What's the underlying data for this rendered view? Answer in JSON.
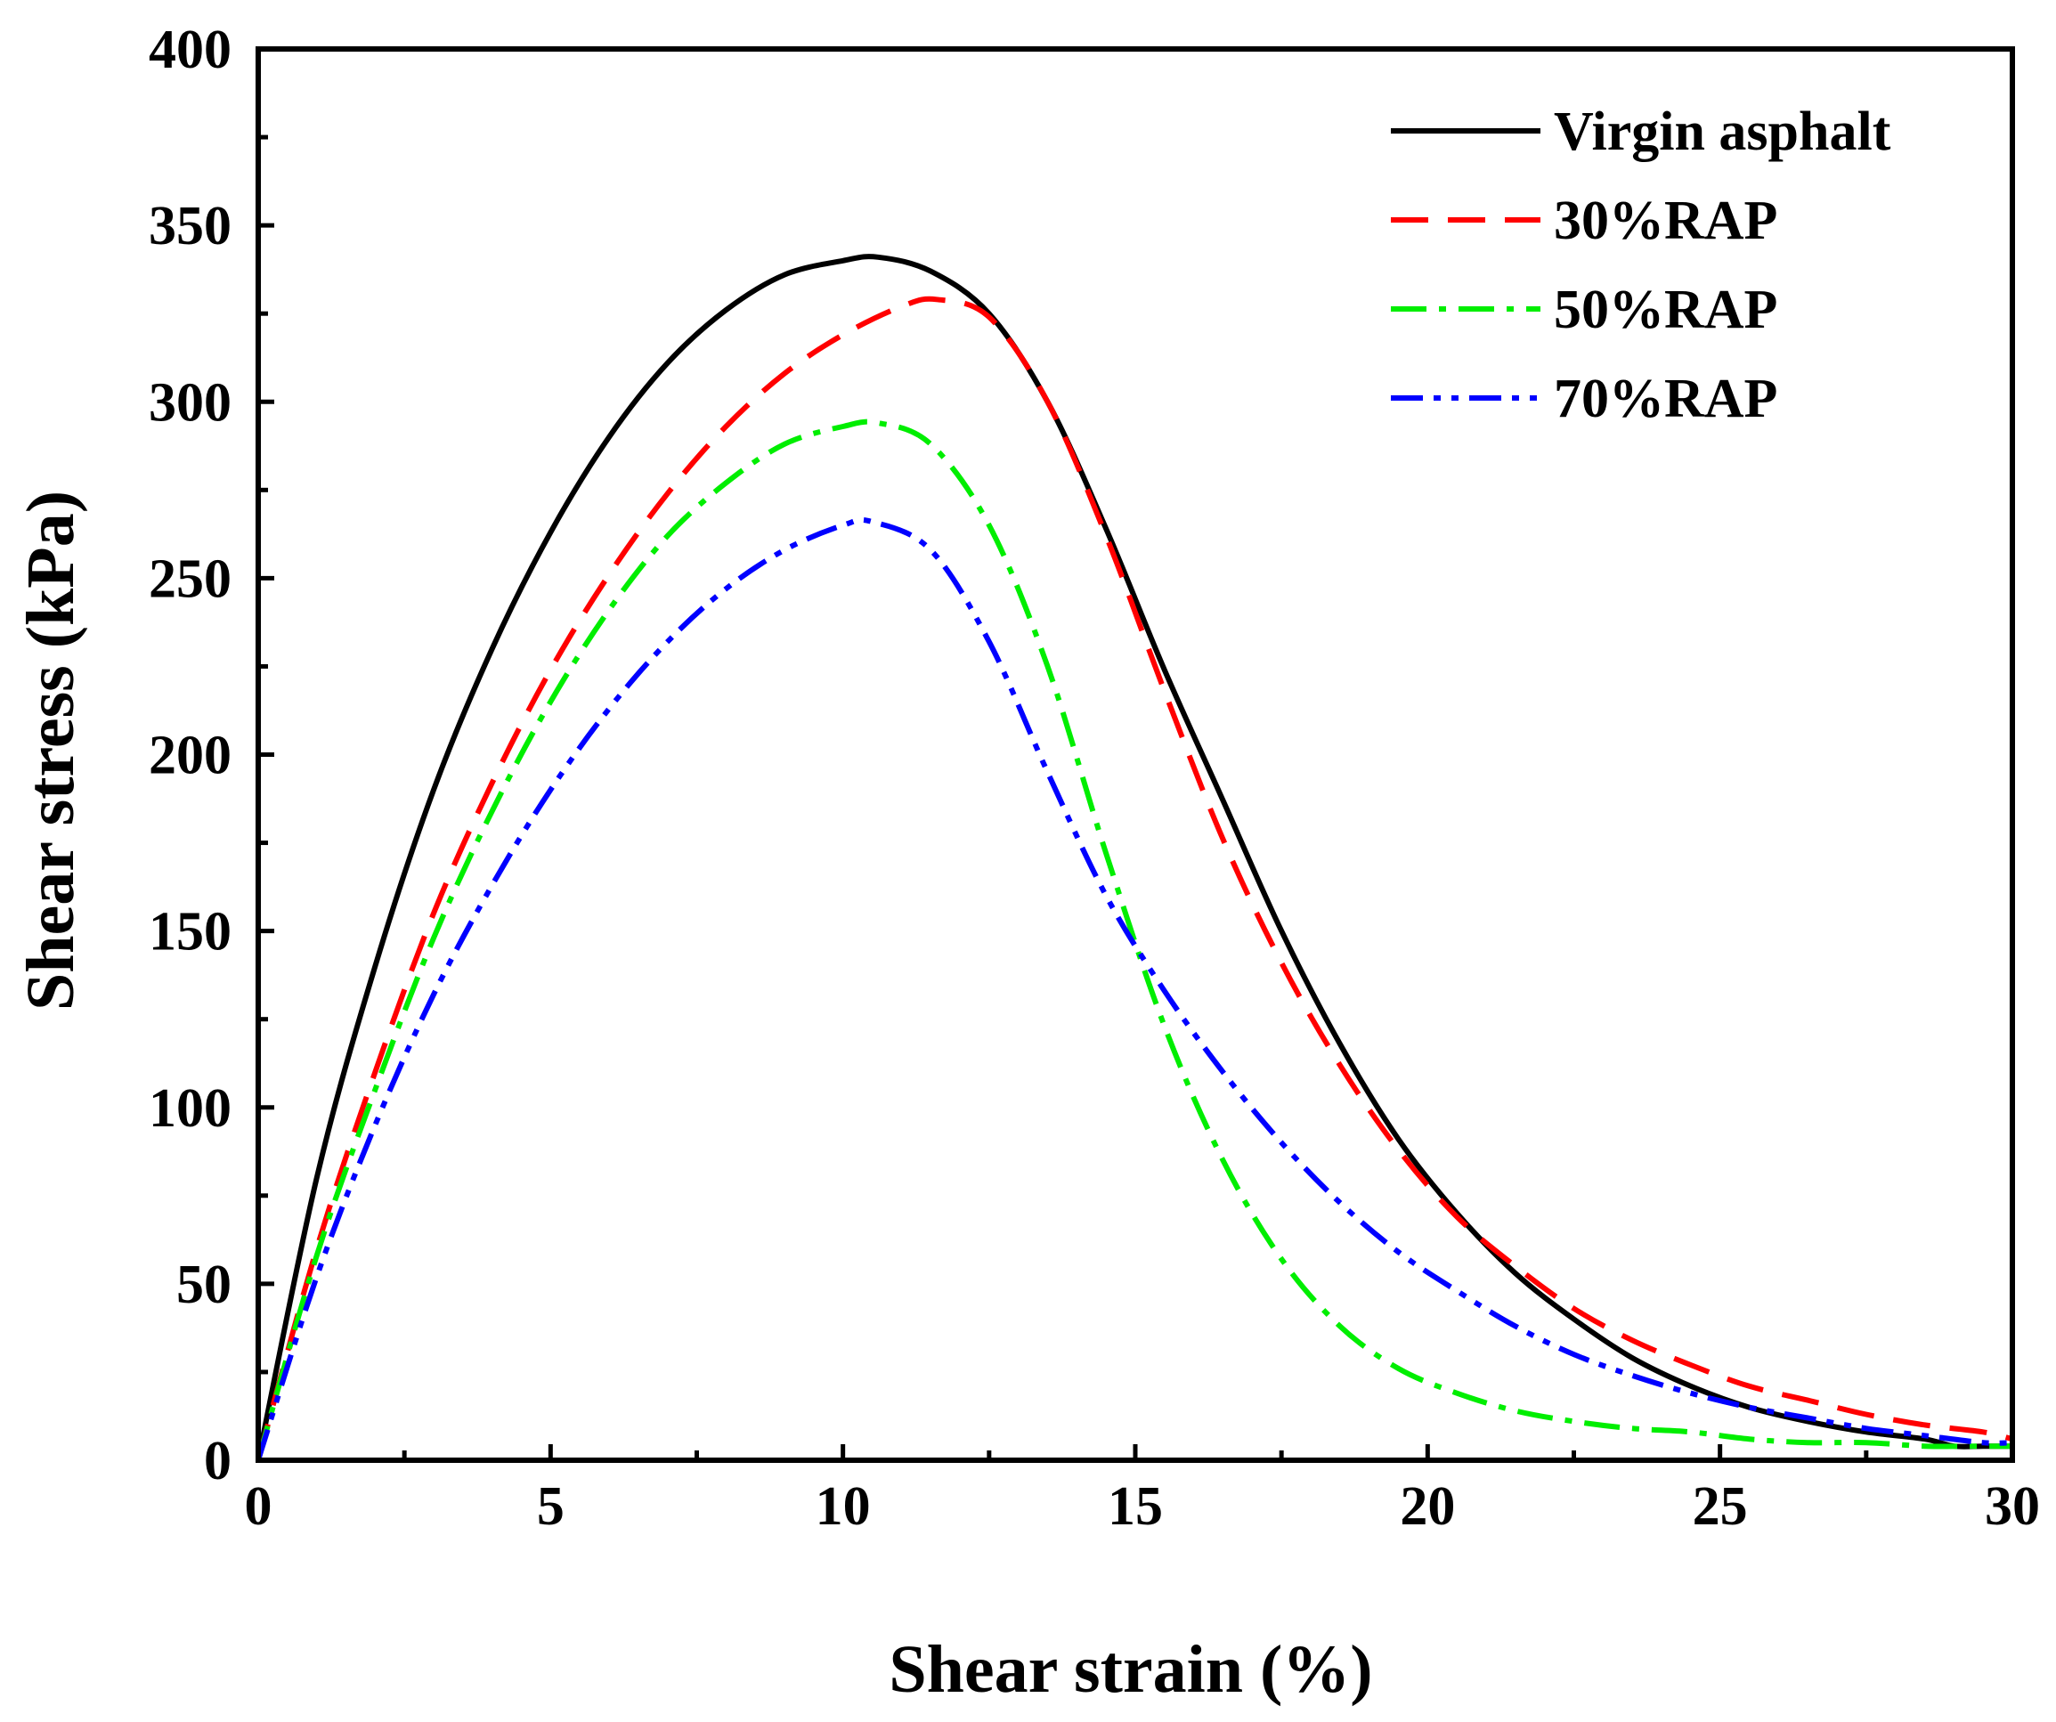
{
  "chart_data": {
    "type": "line",
    "title": "",
    "xlabel": "Shear strain (%)",
    "ylabel": "Shear stress (kPa)",
    "xlim": [
      0,
      30
    ],
    "ylim": [
      0,
      400
    ],
    "xticks": [
      0,
      5,
      10,
      15,
      20,
      25,
      30
    ],
    "xtick_labels": [
      "0",
      "5",
      "10",
      "15",
      "20",
      "25",
      "30"
    ],
    "yticks": [
      0,
      50,
      100,
      150,
      200,
      250,
      300,
      350,
      400
    ],
    "ytick_labels": [
      "0",
      "50",
      "100",
      "150",
      "200",
      "250",
      "300",
      "350",
      "400"
    ],
    "grid": false,
    "legend_position": "top-right",
    "series": [
      {
        "name": "Virgin asphalt",
        "color": "#000000",
        "dash": "solid",
        "points": [
          [
            0,
            0
          ],
          [
            1,
            80
          ],
          [
            2,
            140
          ],
          [
            3,
            190
          ],
          [
            4,
            230
          ],
          [
            5,
            263
          ],
          [
            6,
            290
          ],
          [
            7,
            311
          ],
          [
            8,
            326
          ],
          [
            9,
            336
          ],
          [
            10,
            340
          ],
          [
            10.6,
            341
          ],
          [
            11.5,
            337
          ],
          [
            12.5,
            325
          ],
          [
            13.5,
            300
          ],
          [
            14.5,
            264
          ],
          [
            15.5,
            224
          ],
          [
            16.5,
            187
          ],
          [
            17.5,
            150
          ],
          [
            18.5,
            118
          ],
          [
            19.5,
            91
          ],
          [
            20.5,
            70
          ],
          [
            21.5,
            53
          ],
          [
            22.5,
            40
          ],
          [
            23.5,
            29
          ],
          [
            24.5,
            21
          ],
          [
            25.5,
            15
          ],
          [
            26.5,
            11
          ],
          [
            27.5,
            8
          ],
          [
            28.5,
            6
          ],
          [
            29,
            4
          ],
          [
            29.5,
            4
          ],
          [
            30,
            4
          ]
        ]
      },
      {
        "name": "30%RAP",
        "color": "#ff0000",
        "dash": "dashed",
        "points": [
          [
            0,
            0
          ],
          [
            1,
            60
          ],
          [
            2,
            110
          ],
          [
            3,
            155
          ],
          [
            4,
            192
          ],
          [
            5,
            224
          ],
          [
            6,
            251
          ],
          [
            7,
            274
          ],
          [
            8,
            293
          ],
          [
            9,
            308
          ],
          [
            10,
            319
          ],
          [
            11,
            327
          ],
          [
            11.6,
            329
          ],
          [
            12.5,
            324
          ],
          [
            13.5,
            300
          ],
          [
            14.5,
            262
          ],
          [
            15.5,
            218
          ],
          [
            16.5,
            176
          ],
          [
            17.5,
            141
          ],
          [
            18.5,
            112
          ],
          [
            19.5,
            88
          ],
          [
            20.5,
            69
          ],
          [
            21.5,
            55
          ],
          [
            22.5,
            43
          ],
          [
            23.5,
            34
          ],
          [
            24.5,
            27
          ],
          [
            25.5,
            21
          ],
          [
            26.5,
            17
          ],
          [
            27.5,
            13
          ],
          [
            28.5,
            10
          ],
          [
            29.5,
            8
          ],
          [
            30,
            6
          ]
        ]
      },
      {
        "name": "50%RAP",
        "color": "#00ee00",
        "dash": "dashdot",
        "points": [
          [
            0,
            0
          ],
          [
            1,
            58
          ],
          [
            2,
            105
          ],
          [
            3,
            148
          ],
          [
            4,
            184
          ],
          [
            5,
            215
          ],
          [
            6,
            241
          ],
          [
            7,
            262
          ],
          [
            8,
            277
          ],
          [
            9,
            288
          ],
          [
            10,
            293
          ],
          [
            10.6,
            294
          ],
          [
            11.5,
            288
          ],
          [
            12.5,
            265
          ],
          [
            13.5,
            225
          ],
          [
            14.5,
            172
          ],
          [
            15.5,
            123
          ],
          [
            16.5,
            85
          ],
          [
            17.5,
            57
          ],
          [
            18.5,
            38
          ],
          [
            19.5,
            26
          ],
          [
            20.5,
            19
          ],
          [
            21.5,
            14
          ],
          [
            22.5,
            11
          ],
          [
            23.5,
            9
          ],
          [
            24.5,
            8
          ],
          [
            25.5,
            6
          ],
          [
            26.5,
            5
          ],
          [
            27.5,
            5
          ],
          [
            28.5,
            4
          ],
          [
            29.5,
            4
          ],
          [
            30,
            4
          ]
        ]
      },
      {
        "name": "70%RAP",
        "color": "#0000ff",
        "dash": "dashdotdot",
        "points": [
          [
            0,
            0
          ],
          [
            1,
            52
          ],
          [
            2,
            95
          ],
          [
            3,
            132
          ],
          [
            4,
            163
          ],
          [
            5,
            190
          ],
          [
            6,
            213
          ],
          [
            7,
            232
          ],
          [
            8,
            247
          ],
          [
            9,
            258
          ],
          [
            10,
            265
          ],
          [
            10.5,
            266
          ],
          [
            11.5,
            258
          ],
          [
            12.5,
            232
          ],
          [
            13.5,
            195
          ],
          [
            14.5,
            160
          ],
          [
            15.5,
            133
          ],
          [
            16.5,
            110
          ],
          [
            17.5,
            90
          ],
          [
            18.5,
            73
          ],
          [
            19.5,
            59
          ],
          [
            20.5,
            48
          ],
          [
            21.5,
            38
          ],
          [
            22.5,
            30
          ],
          [
            23.5,
            24
          ],
          [
            24.5,
            19
          ],
          [
            25.5,
            15
          ],
          [
            26.5,
            12
          ],
          [
            27.5,
            9
          ],
          [
            28.5,
            7
          ],
          [
            29.5,
            5
          ],
          [
            30,
            5
          ]
        ]
      }
    ]
  }
}
